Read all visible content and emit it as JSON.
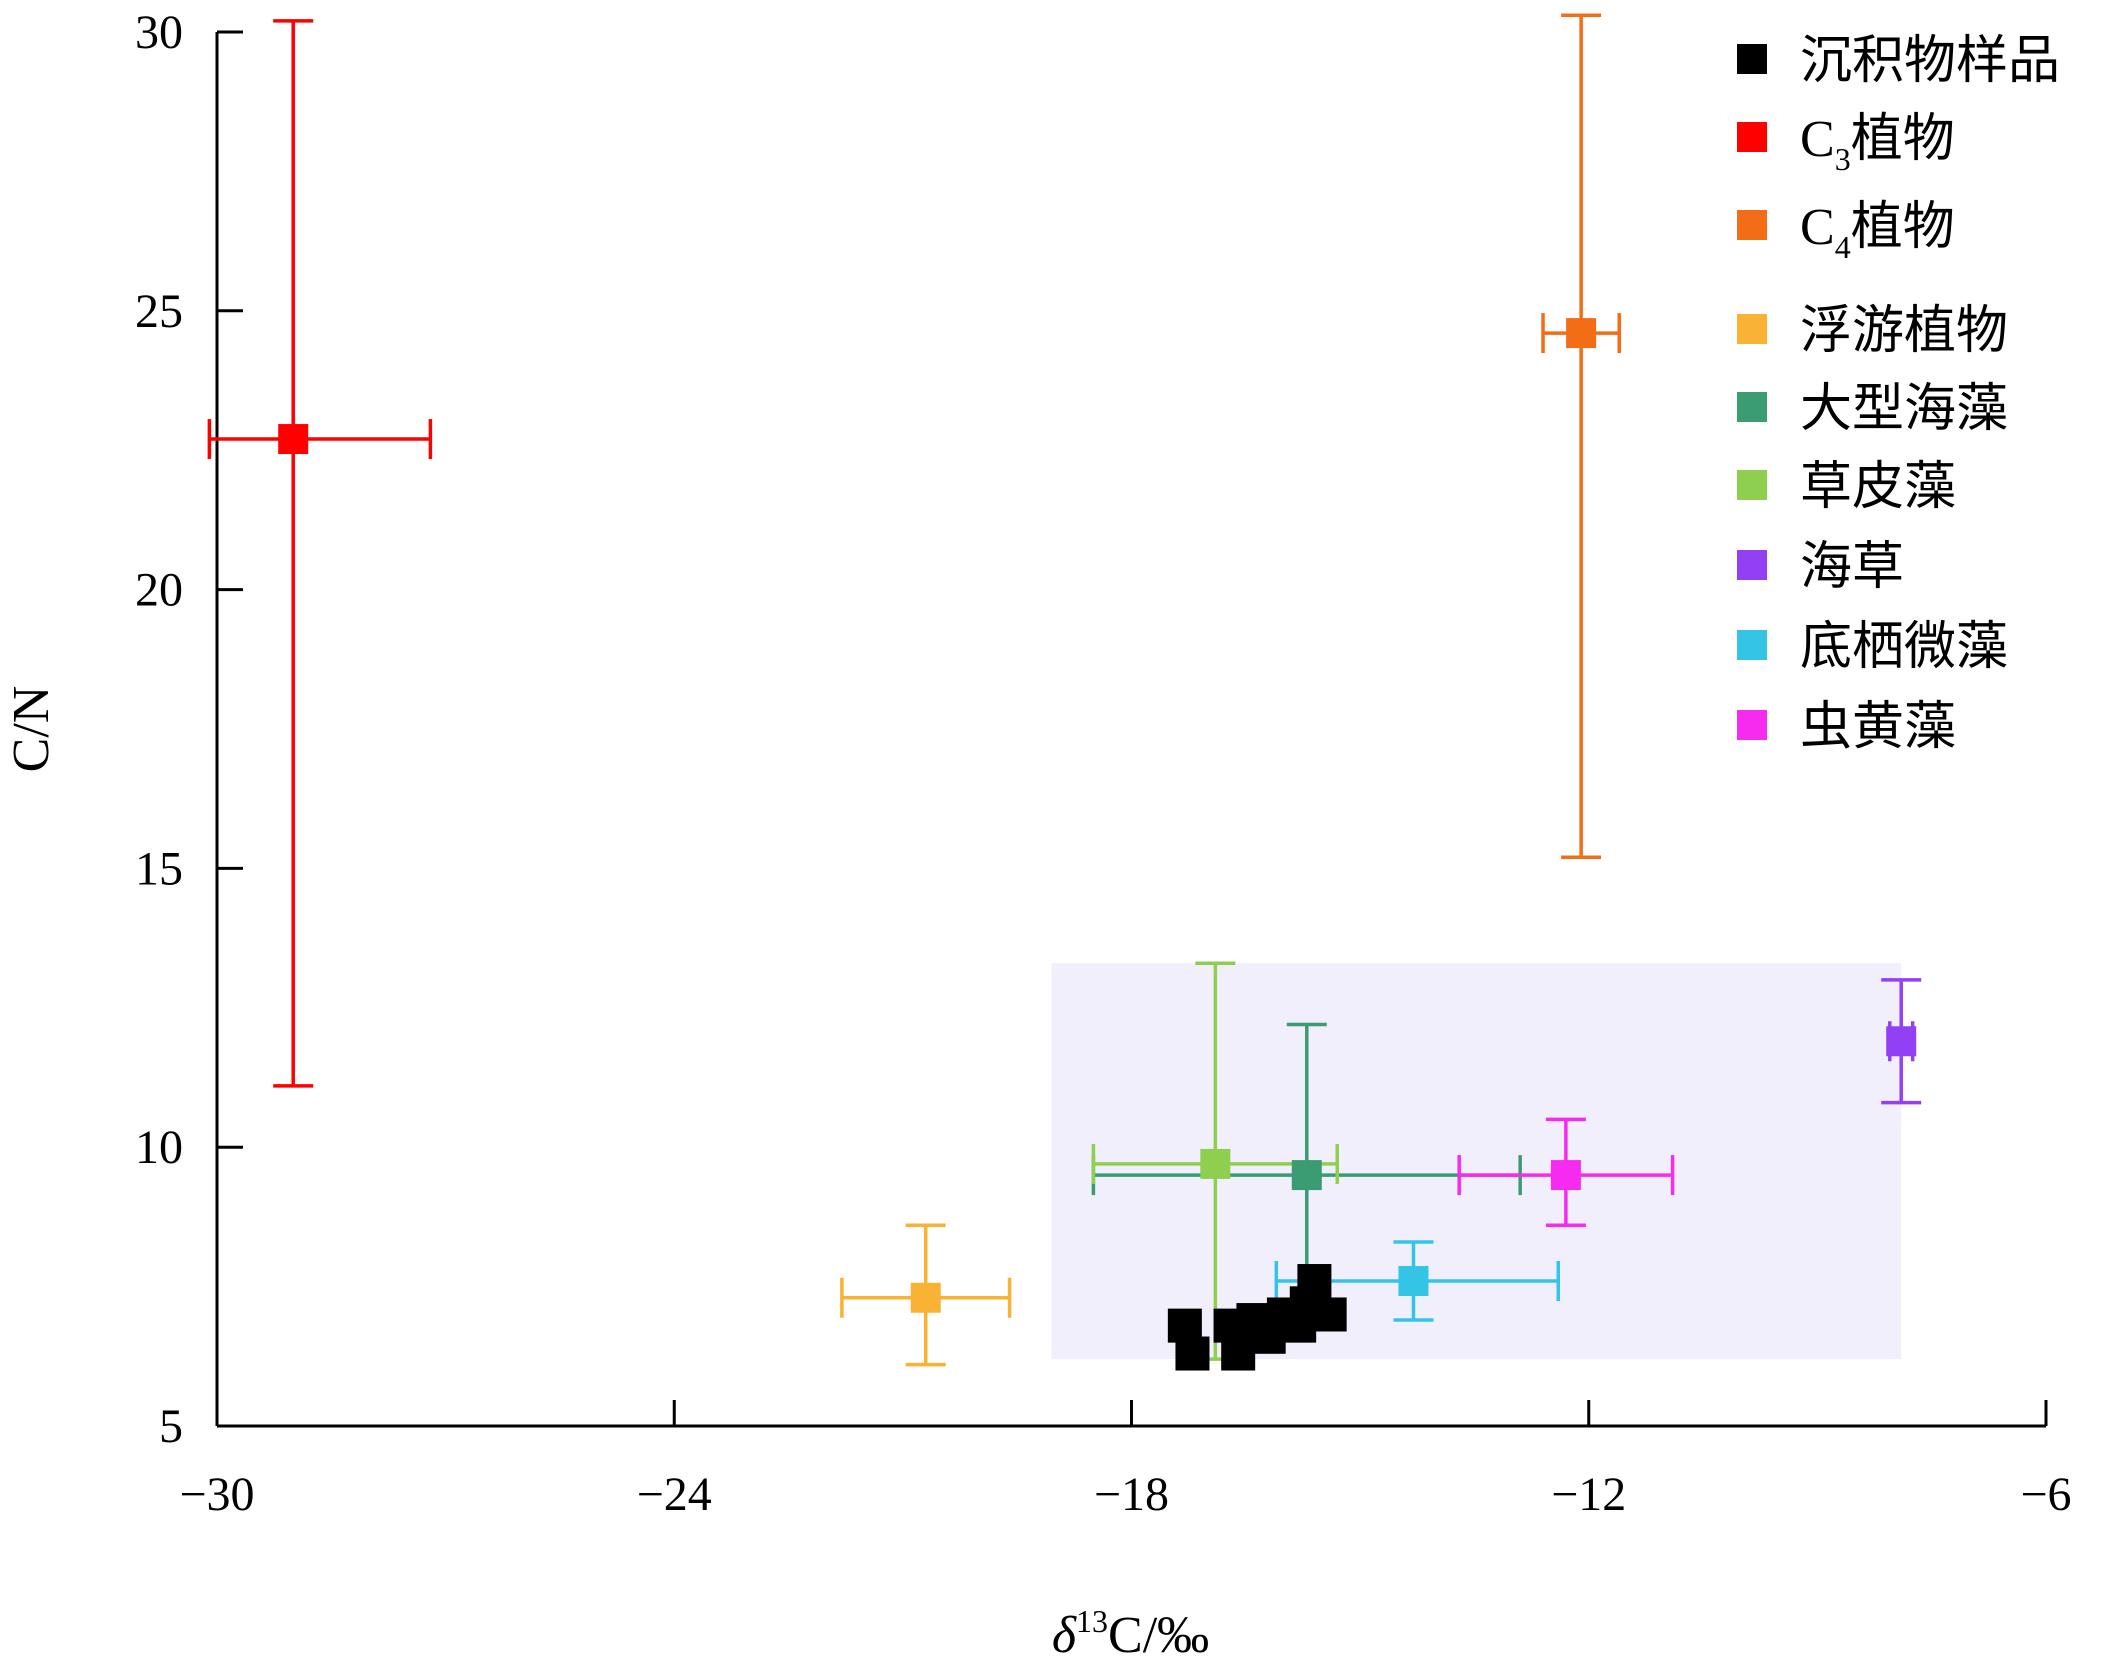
{
  "chart_data": {
    "type": "scatter",
    "xlabel": {
      "prefix": "δ",
      "sup": "13",
      "suffix": "C/‰"
    },
    "ylabel": "C/N",
    "xlim": [
      -30,
      -6
    ],
    "ylim": [
      5,
      30
    ],
    "xticks": [
      -30,
      -24,
      -18,
      -12,
      -6
    ],
    "yticks": [
      5,
      10,
      15,
      20,
      25,
      30
    ],
    "xtick_labels": [
      "−30",
      "−24",
      "−18",
      "−12",
      "−6"
    ],
    "ytick_labels": [
      "5",
      "10",
      "15",
      "20",
      "25",
      "30"
    ],
    "shaded_region": {
      "x": [
        -19.05,
        -7.9
      ],
      "y": [
        6.2,
        13.3
      ],
      "color": "#f1effc"
    },
    "legend_position": "top-right",
    "series": [
      {
        "name": "沉积物样品",
        "color": "#000000",
        "points": [
          {
            "x": -17.3,
            "y": 6.8
          },
          {
            "x": -17.2,
            "y": 6.3
          },
          {
            "x": -16.7,
            "y": 6.8
          },
          {
            "x": -16.6,
            "y": 6.3
          },
          {
            "x": -16.4,
            "y": 6.9
          },
          {
            "x": -16.2,
            "y": 6.6
          },
          {
            "x": -16.0,
            "y": 7.0
          },
          {
            "x": -15.8,
            "y": 6.8
          },
          {
            "x": -15.7,
            "y": 7.2
          },
          {
            "x": -15.6,
            "y": 7.6
          },
          {
            "x": -15.4,
            "y": 7.0
          }
        ]
      },
      {
        "name": "C₃植物",
        "label_main": "C",
        "label_sub": "3",
        "label_rest": "植物",
        "color": "#ff0000",
        "points": [
          {
            "x": -29.0,
            "y": 22.7,
            "xerr": [
              1.1,
              1.8
            ],
            "yerr": [
              11.6,
              7.5
            ]
          }
        ]
      },
      {
        "name": "C₄植物",
        "label_main": "C",
        "label_sub": "4",
        "label_rest": "植物",
        "color": "#f36c16",
        "points": [
          {
            "x": -12.1,
            "y": 24.6,
            "xerr": [
              0.5,
              0.5
            ],
            "yerr": [
              9.4,
              5.7
            ]
          }
        ]
      },
      {
        "name": "浮游植物",
        "color": "#f9b233",
        "points": [
          {
            "x": -20.7,
            "y": 7.3,
            "xerr": [
              1.1,
              1.1
            ],
            "yerr": [
              1.2,
              1.3
            ]
          }
        ]
      },
      {
        "name": "大型海藻",
        "color": "#3b9b72",
        "points": [
          {
            "x": -15.7,
            "y": 9.5,
            "xerr": [
              2.8,
              2.8
            ],
            "yerr": [
              2.7,
              2.7
            ]
          }
        ]
      },
      {
        "name": "草皮藻",
        "color": "#8ecf4f",
        "points": [
          {
            "x": -16.9,
            "y": 9.7,
            "xerr": [
              1.6,
              1.6
            ],
            "yerr": [
              3.5,
              3.6
            ]
          }
        ]
      },
      {
        "name": "海草",
        "color": "#9340f5",
        "points": [
          {
            "x": -7.9,
            "y": 11.9,
            "xerr": [
              0.15,
              0.15
            ],
            "yerr": [
              1.1,
              1.1
            ]
          }
        ]
      },
      {
        "name": "底栖微藻",
        "color": "#34c5e6",
        "points": [
          {
            "x": -14.3,
            "y": 7.6,
            "xerr": [
              1.8,
              1.9
            ],
            "yerr": [
              0.7,
              0.7
            ]
          }
        ]
      },
      {
        "name": "虫黄藻",
        "color": "#f52bf0",
        "points": [
          {
            "x": -12.3,
            "y": 9.5,
            "xerr": [
              1.4,
              1.4
            ],
            "yerr": [
              0.9,
              1.0
            ]
          }
        ]
      }
    ]
  }
}
